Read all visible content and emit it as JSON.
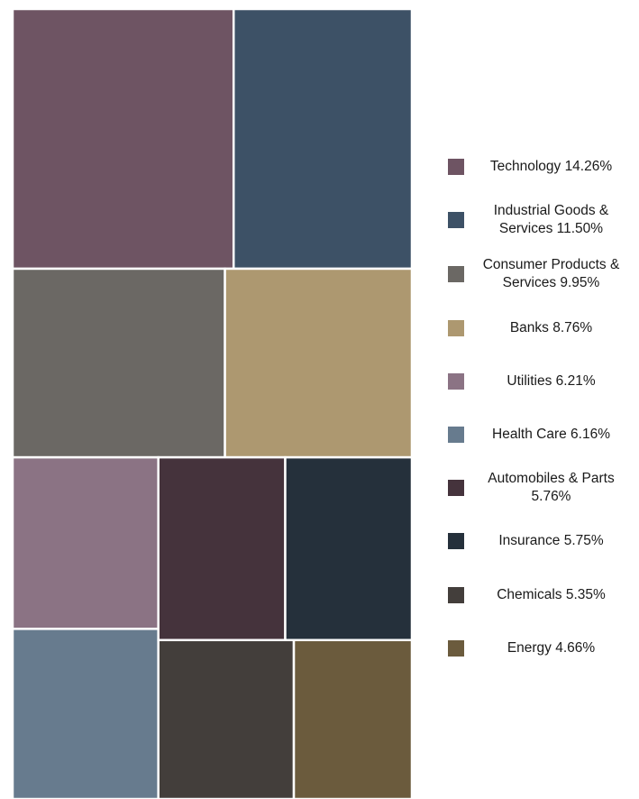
{
  "chart_data": {
    "type": "treemap",
    "title": "",
    "legend_position": "right",
    "items": [
      {
        "name": "Technology",
        "value": 14.26,
        "label": "Technology 14.26%",
        "color": "#6e5463"
      },
      {
        "name": "Industrial Goods & Services",
        "value": 11.5,
        "label": "Industrial Goods & Services 11.50%",
        "color": "#3d5166"
      },
      {
        "name": "Consumer Products & Services",
        "value": 9.95,
        "label": "Consumer Products & Services 9.95%",
        "color": "#6b6864"
      },
      {
        "name": "Banks",
        "value": 8.76,
        "label": "Banks 8.76%",
        "color": "#ad9870"
      },
      {
        "name": "Utilities",
        "value": 6.21,
        "label": "Utilities 6.21%",
        "color": "#8b7384"
      },
      {
        "name": "Health Care",
        "value": 6.16,
        "label": "Health Care   6.16%",
        "color": "#677b8e"
      },
      {
        "name": "Automobiles & Parts",
        "value": 5.76,
        "label": "Automobiles & Parts 5.76%",
        "color": "#45333c"
      },
      {
        "name": "Insurance",
        "value": 5.75,
        "label": "Insurance 5.75%",
        "color": "#25303b"
      },
      {
        "name": "Chemicals",
        "value": 5.35,
        "label": "Chemicals 5.35%",
        "color": "#433e3b"
      },
      {
        "name": "Energy",
        "value": 4.66,
        "label": "Energy 4.66%",
        "color": "#6b5b3d"
      }
    ]
  }
}
